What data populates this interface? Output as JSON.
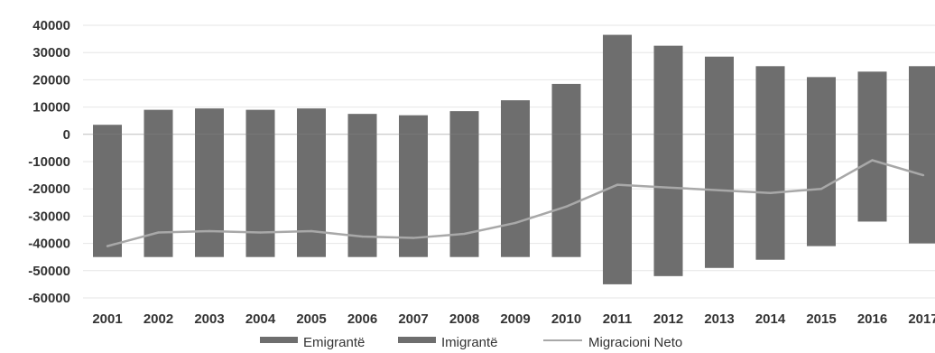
{
  "chart_data": {
    "type": "bar",
    "categories": [
      "2001",
      "2002",
      "2003",
      "2004",
      "2005",
      "2006",
      "2007",
      "2008",
      "2009",
      "2010",
      "2011",
      "2012",
      "2013",
      "2014",
      "2015",
      "2016",
      "2017"
    ],
    "series": [
      {
        "name": "Emigrantë",
        "kind": "bar",
        "values": [
          -45000,
          -45000,
          -45000,
          -45000,
          -45000,
          -45000,
          -45000,
          -45000,
          -45000,
          -45000,
          -55000,
          -52000,
          -49000,
          -46000,
          -41000,
          -32000,
          -40000
        ]
      },
      {
        "name": "Imigrantë",
        "kind": "bar",
        "values": [
          3500,
          9000,
          9500,
          9000,
          9500,
          7500,
          7000,
          8500,
          12500,
          18500,
          36500,
          32500,
          28500,
          25000,
          21000,
          23000,
          25000
        ]
      },
      {
        "name": "Migracioni Neto",
        "kind": "line",
        "values": [
          -41000,
          -36000,
          -35500,
          -36000,
          -35500,
          -37500,
          -38000,
          -36500,
          -32500,
          -26500,
          -18500,
          -19500,
          -20500,
          -21500,
          -20000,
          -9500,
          -15000
        ]
      }
    ],
    "ylim": [
      -60000,
      40000
    ],
    "yticks": [
      40000,
      30000,
      20000,
      10000,
      0,
      -10000,
      -20000,
      -30000,
      -40000,
      -50000,
      -60000
    ],
    "grid": true,
    "legend_position": "bottom",
    "colors": {
      "bars": "#6e6e6e",
      "line": "#a8a8a8",
      "grid": "#e6e6e6",
      "zero": "#bdbdbd"
    }
  }
}
